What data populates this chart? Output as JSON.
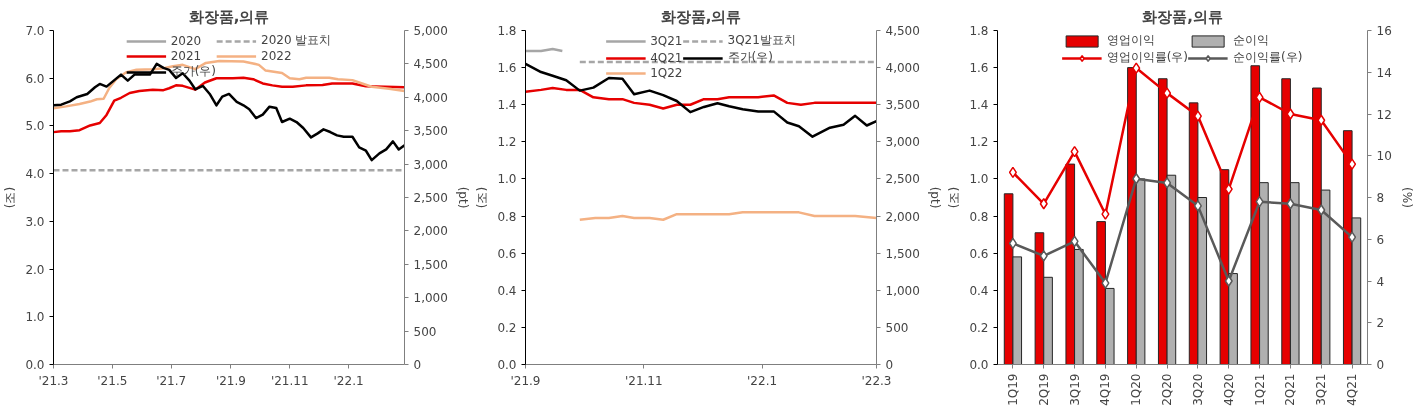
{
  "chart_data": [
    {
      "type": "line",
      "title": "화장품,의류",
      "ylabel": "(조)",
      "y2label": "(pt)",
      "legend": "top",
      "xlim": [
        "2021-03-01",
        "2022-02-28"
      ],
      "xticks": [
        {
          "value": "2021-03-01",
          "label": "'21.3"
        },
        {
          "value": "2021-05-01",
          "label": "'21.5"
        },
        {
          "value": "2021-07-01",
          "label": "'21.7"
        },
        {
          "value": "2021-09-01",
          "label": "'21.9"
        },
        {
          "value": "2021-11-01",
          "label": "'21.11"
        },
        {
          "value": "2022-01-01",
          "label": "'22.1"
        }
      ],
      "ylim": [
        0,
        7
      ],
      "yticks": [
        {
          "value": 0,
          "label": "0.0"
        },
        {
          "value": 1,
          "label": "1.0"
        },
        {
          "value": 2,
          "label": "2.0"
        },
        {
          "value": 3,
          "label": "3.0"
        },
        {
          "value": 4,
          "label": "4.0"
        },
        {
          "value": 5,
          "label": "5.0"
        },
        {
          "value": 6,
          "label": "6.0"
        },
        {
          "value": 7,
          "label": "7.0"
        }
      ],
      "y2lim": [
        0,
        5000
      ],
      "y2ticks": [
        0,
        500,
        {
          "value": 1000,
          "label": "1,000"
        },
        {
          "value": 1500,
          "label": "1,500"
        },
        {
          "value": 2000,
          "label": "2,000"
        },
        {
          "value": 2500,
          "label": "2,500"
        },
        {
          "value": 3000,
          "label": "3,000"
        },
        {
          "value": 3500,
          "label": "3,500"
        },
        {
          "value": 4000,
          "label": "4,000"
        },
        {
          "value": 4500,
          "label": "4,500"
        },
        {
          "value": 5000,
          "label": "5,000"
        }
      ],
      "series": [
        {
          "name": "2020",
          "color": "#a6a6a6"
        },
        {
          "name": "2020 발표치",
          "color": "#a6a6a6",
          "line_style": "dashed",
          "x": [
            "2021-03-01",
            "2022-02-28"
          ],
          "values": [
            4.07,
            4.07
          ]
        },
        {
          "name": "2021",
          "color": "#e60000",
          "x": [
            "2021-03-01",
            "2021-03-09",
            "2021-03-18",
            "2021-03-28",
            "2021-04-08",
            "2021-04-18",
            "2021-04-25",
            "2021-05-03",
            "2021-05-10",
            "2021-05-19",
            "2021-05-29",
            "2021-06-12",
            "2021-06-23",
            "2021-06-29",
            "2021-07-06",
            "2021-07-13",
            "2021-07-26",
            "2021-08-05",
            "2021-08-17",
            "2021-09-03",
            "2021-09-14",
            "2021-09-24",
            "2021-10-04",
            "2021-10-14",
            "2021-10-24",
            "2021-11-04",
            "2021-11-18",
            "2021-12-05",
            "2021-12-15",
            "2022-01-05",
            "2022-01-19",
            "2022-02-28"
          ],
          "values": [
            4.87,
            4.89,
            4.89,
            4.91,
            5.01,
            5.06,
            5.23,
            5.53,
            5.59,
            5.69,
            5.73,
            5.76,
            5.75,
            5.79,
            5.85,
            5.84,
            5.76,
            5.91,
            6.0,
            6.0,
            6.01,
            5.98,
            5.89,
            5.85,
            5.82,
            5.82,
            5.85,
            5.86,
            5.89,
            5.89,
            5.83,
            5.81
          ]
        },
        {
          "name": "2022",
          "color": "#f4b183",
          "x": [
            "2021-03-01",
            "2021-03-14",
            "2021-03-28",
            "2021-04-08",
            "2021-04-15",
            "2021-04-22",
            "2021-04-28",
            "2021-05-05",
            "2021-05-15",
            "2021-05-26",
            "2021-06-12",
            "2021-06-23",
            "2021-07-03",
            "2021-07-13",
            "2021-07-26",
            "2021-08-06",
            "2021-08-20",
            "2021-09-14",
            "2021-09-24",
            "2021-09-30",
            "2021-10-07",
            "2021-10-24",
            "2021-11-01",
            "2021-11-11",
            "2021-11-18",
            "2021-12-12",
            "2021-12-21",
            "2022-01-05",
            "2022-01-15",
            "2022-01-25",
            "2022-02-12",
            "2022-02-28"
          ],
          "values": [
            5.37,
            5.41,
            5.46,
            5.51,
            5.56,
            5.57,
            5.8,
            5.98,
            6.12,
            6.18,
            6.19,
            6.21,
            6.25,
            6.28,
            6.19,
            6.32,
            6.36,
            6.35,
            6.31,
            6.28,
            6.16,
            6.11,
            6.0,
            5.98,
            6.01,
            6.01,
            5.98,
            5.96,
            5.89,
            5.82,
            5.78,
            5.73
          ]
        },
        {
          "name": "주가(우)",
          "color": "#000000",
          "axis": "y2",
          "x": [
            "2021-03-01",
            "2021-03-09",
            "2021-03-18",
            "2021-03-25",
            "2021-04-05",
            "2021-04-13",
            "2021-04-18",
            "2021-04-25",
            "2021-05-10",
            "2021-05-17",
            "2021-05-24",
            "2021-06-09",
            "2021-06-16",
            "2021-06-23",
            "2021-06-29",
            "2021-07-06",
            "2021-07-13",
            "2021-07-20",
            "2021-07-26",
            "2021-08-03",
            "2021-08-10",
            "2021-08-17",
            "2021-08-23",
            "2021-08-30",
            "2021-09-07",
            "2021-09-14",
            "2021-09-20",
            "2021-09-27",
            "2021-10-04",
            "2021-10-11",
            "2021-10-18",
            "2021-10-24",
            "2021-11-01",
            "2021-11-08",
            "2021-11-15",
            "2021-11-23",
            "2021-11-30",
            "2021-12-06",
            "2021-12-13",
            "2021-12-20",
            "2021-12-27",
            "2022-01-05",
            "2022-01-12",
            "2022-01-19",
            "2022-01-25",
            "2022-02-02",
            "2022-02-09",
            "2022-02-16",
            "2022-02-22",
            "2022-02-28"
          ],
          "values": [
            3880,
            3890,
            3940,
            4000,
            4050,
            4150,
            4200,
            4160,
            4340,
            4250,
            4340,
            4340,
            4500,
            4440,
            4410,
            4290,
            4360,
            4250,
            4120,
            4170,
            4050,
            3880,
            4010,
            4050,
            3930,
            3880,
            3820,
            3690,
            3740,
            3860,
            3840,
            3630,
            3680,
            3630,
            3540,
            3400,
            3460,
            3520,
            3480,
            3430,
            3410,
            3410,
            3250,
            3200,
            3060,
            3160,
            3220,
            3340,
            3220,
            3280
          ]
        }
      ]
    },
    {
      "type": "line",
      "title": "화장품,의류",
      "ylabel": "(조)",
      "y2label": "(pt)",
      "legend": "top",
      "xlim": [
        "2021-09-01",
        "2022-03-01"
      ],
      "xticks": [
        {
          "value": "2021-09-01",
          "label": "'21.9"
        },
        {
          "value": "2021-11-01",
          "label": "'21.11"
        },
        {
          "value": "2022-01-01",
          "label": "'22.1"
        },
        {
          "value": "2022-03-01",
          "label": "'22.3"
        }
      ],
      "ylim": [
        0,
        1.8
      ],
      "yticks": [
        {
          "value": 0,
          "label": "0.0"
        },
        0.2,
        0.4,
        0.6,
        0.8,
        {
          "value": 1,
          "label": "1.0"
        },
        1.2,
        1.4,
        1.6,
        1.8
      ],
      "y2lim": [
        0,
        4500
      ],
      "y2ticks": [
        0,
        500,
        {
          "value": 1000,
          "label": "1,000"
        },
        {
          "value": 1500,
          "label": "1,500"
        },
        {
          "value": 2000,
          "label": "2,000"
        },
        {
          "value": 2500,
          "label": "2,500"
        },
        {
          "value": 3000,
          "label": "3,000"
        },
        {
          "value": 3500,
          "label": "3,500"
        },
        {
          "value": 4000,
          "label": "4,000"
        },
        {
          "value": 4500,
          "label": "4,500"
        }
      ],
      "series": [
        {
          "name": "3Q21",
          "color": "#a6a6a6",
          "x": [
            "2021-09-01",
            "2021-09-09",
            "2021-09-15",
            "2021-09-20"
          ],
          "values": [
            1.69,
            1.69,
            1.7,
            1.69
          ]
        },
        {
          "name": "3Q21발표치",
          "color": "#a6a6a6",
          "line_style": "dashed",
          "x": [
            "2021-09-29",
            "2022-03-01"
          ],
          "values": [
            1.63,
            1.63
          ]
        },
        {
          "name": "4Q21",
          "color": "#e60000",
          "x": [
            "2021-09-01",
            "2021-09-09",
            "2021-09-15",
            "2021-09-22",
            "2021-09-29",
            "2021-10-06",
            "2021-10-14",
            "2021-10-21",
            "2021-10-27",
            "2021-11-04",
            "2021-11-11",
            "2021-11-18",
            "2021-11-25",
            "2021-12-02",
            "2021-12-09",
            "2021-12-15",
            "2021-12-30",
            "2022-01-07",
            "2022-01-14",
            "2022-01-21",
            "2022-01-28",
            "2022-02-12",
            "2022-03-01"
          ],
          "values": [
            1.47,
            1.48,
            1.49,
            1.48,
            1.48,
            1.44,
            1.43,
            1.43,
            1.41,
            1.4,
            1.38,
            1.4,
            1.4,
            1.43,
            1.43,
            1.44,
            1.44,
            1.45,
            1.41,
            1.4,
            1.41,
            1.41,
            1.41
          ]
        },
        {
          "name": "주가(우)",
          "color": "#000000",
          "axis": "y2",
          "x": [
            "2021-09-01",
            "2021-09-09",
            "2021-09-15",
            "2021-09-22",
            "2021-09-29",
            "2021-10-06",
            "2021-10-14",
            "2021-10-21",
            "2021-10-27",
            "2021-11-04",
            "2021-11-11",
            "2021-11-18",
            "2021-11-25",
            "2021-12-02",
            "2021-12-09",
            "2021-12-15",
            "2021-12-22",
            "2021-12-30",
            "2022-01-07",
            "2022-01-14",
            "2022-01-20",
            "2022-01-27",
            "2022-02-05",
            "2022-02-12",
            "2022-02-18",
            "2022-02-24",
            "2022-03-01"
          ],
          "values": [
            4050,
            3940,
            3890,
            3830,
            3690,
            3730,
            3860,
            3850,
            3640,
            3690,
            3630,
            3550,
            3400,
            3470,
            3520,
            3480,
            3440,
            3410,
            3410,
            3260,
            3210,
            3070,
            3190,
            3230,
            3350,
            3220,
            3280
          ]
        },
        {
          "name": "1Q22",
          "color": "#f4b183",
          "x": [
            "2021-09-29",
            "2021-10-07",
            "2021-10-14",
            "2021-10-21",
            "2021-10-27",
            "2021-11-04",
            "2021-11-11",
            "2021-11-18",
            "2021-11-25",
            "2021-12-02",
            "2021-12-15",
            "2021-12-22",
            "2021-12-30",
            "2022-01-20",
            "2022-01-28",
            "2022-02-12",
            "2022-02-18",
            "2022-03-01"
          ],
          "values": [
            0.78,
            0.79,
            0.79,
            0.8,
            0.79,
            0.79,
            0.78,
            0.81,
            0.81,
            0.81,
            0.81,
            0.82,
            0.82,
            0.82,
            0.8,
            0.8,
            0.8,
            0.79
          ]
        }
      ]
    },
    {
      "type": "bar",
      "title": "화장품,의류",
      "ylabel": "(조)",
      "y2label": "(%)",
      "legend": "top",
      "marker": "diamond",
      "categories": [
        "1Q19",
        "2Q19",
        "3Q19",
        "4Q19",
        "1Q20",
        "2Q20",
        "3Q20",
        "4Q20",
        "1Q21",
        "2Q21",
        "3Q21",
        "4Q21"
      ],
      "ylim": [
        0,
        1.8
      ],
      "yticks": [
        {
          "value": 0,
          "label": "0.0"
        },
        0.2,
        0.4,
        0.6,
        0.8,
        {
          "value": 1,
          "label": "1.0"
        },
        1.2,
        1.4,
        1.6,
        1.8
      ],
      "y2lim": [
        0,
        16
      ],
      "y2ticks": [
        0,
        2,
        4,
        6,
        8,
        10,
        12,
        14,
        16
      ],
      "series": [
        {
          "name": "영업이익",
          "color": "#e60000",
          "values": [
            0.92,
            0.71,
            1.08,
            0.77,
            1.6,
            1.54,
            1.41,
            1.05,
            1.61,
            1.54,
            1.49,
            1.26
          ]
        },
        {
          "name": "순이익",
          "color": "#b0b0b0",
          "values": [
            0.58,
            0.47,
            0.62,
            0.41,
            1.0,
            1.02,
            0.9,
            0.49,
            0.98,
            0.98,
            0.94,
            0.79
          ]
        },
        {
          "name": "영업이익률(우)",
          "type": "line",
          "axis": "y2",
          "color": "#e60000",
          "values": [
            9.2,
            7.7,
            10.2,
            7.2,
            14.2,
            13.0,
            11.9,
            8.4,
            12.8,
            12.0,
            11.7,
            9.6
          ]
        },
        {
          "name": "순이익률(우)",
          "type": "line",
          "axis": "y2",
          "color": "#595959",
          "values": [
            5.8,
            5.2,
            5.9,
            3.9,
            8.9,
            8.7,
            7.6,
            4.0,
            7.8,
            7.7,
            7.4,
            6.1
          ]
        }
      ]
    }
  ]
}
